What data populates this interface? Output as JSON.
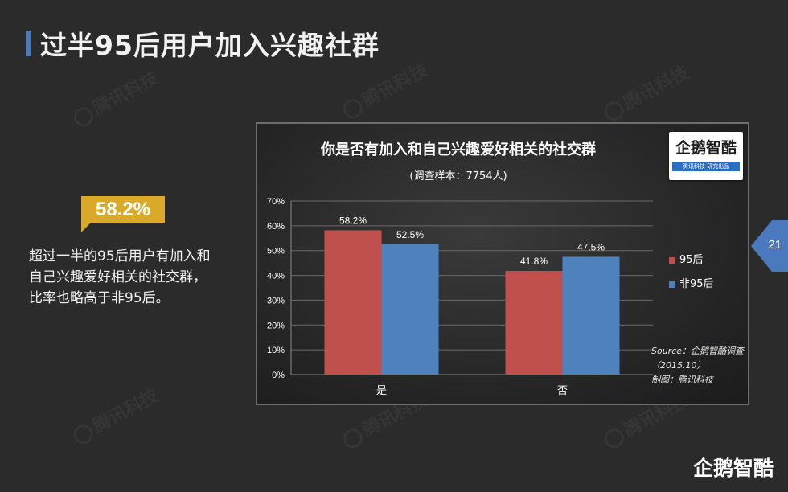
{
  "slide": {
    "title": "过半95后用户加入兴趣社群",
    "highlight_value": "58.2%",
    "description_lines": [
      "超过一半的95后用户有加入和",
      "自己兴趣爱好相关的社交群，",
      "比率也略高于非95后。"
    ],
    "page_number": "21",
    "footer_logo": "企鹅智酷",
    "watermark_text": "腾讯科技",
    "accent_color": "#4a79bd",
    "highlight_color": "#d9a92a"
  },
  "chart_data": {
    "type": "bar",
    "title": "你是否有加入和自己兴趣爱好相关的社交群",
    "subtitle": "(调查样本：7754人)",
    "categories": [
      "是",
      "否"
    ],
    "series": [
      {
        "name": "95后",
        "values": [
          58.2,
          41.8
        ],
        "labels": [
          "58.2%",
          "41.8%"
        ],
        "color": "#c0504d"
      },
      {
        "name": "非95后",
        "values": [
          52.5,
          47.5
        ],
        "labels": [
          "52.5%",
          "47.5%"
        ],
        "color": "#4f81bd"
      }
    ],
    "ylim": [
      0,
      70
    ],
    "yticks": [
      "0%",
      "10%",
      "20%",
      "30%",
      "40%",
      "50%",
      "60%",
      "70%"
    ],
    "grid": true,
    "legend_position": "right",
    "source_lines": [
      "Source：企鹅智酷调查",
      "（2015.10）",
      "制图：腾讯科技"
    ],
    "badge": {
      "name": "企鹅智酷",
      "strip": "腾讯科技 研究出品"
    }
  }
}
